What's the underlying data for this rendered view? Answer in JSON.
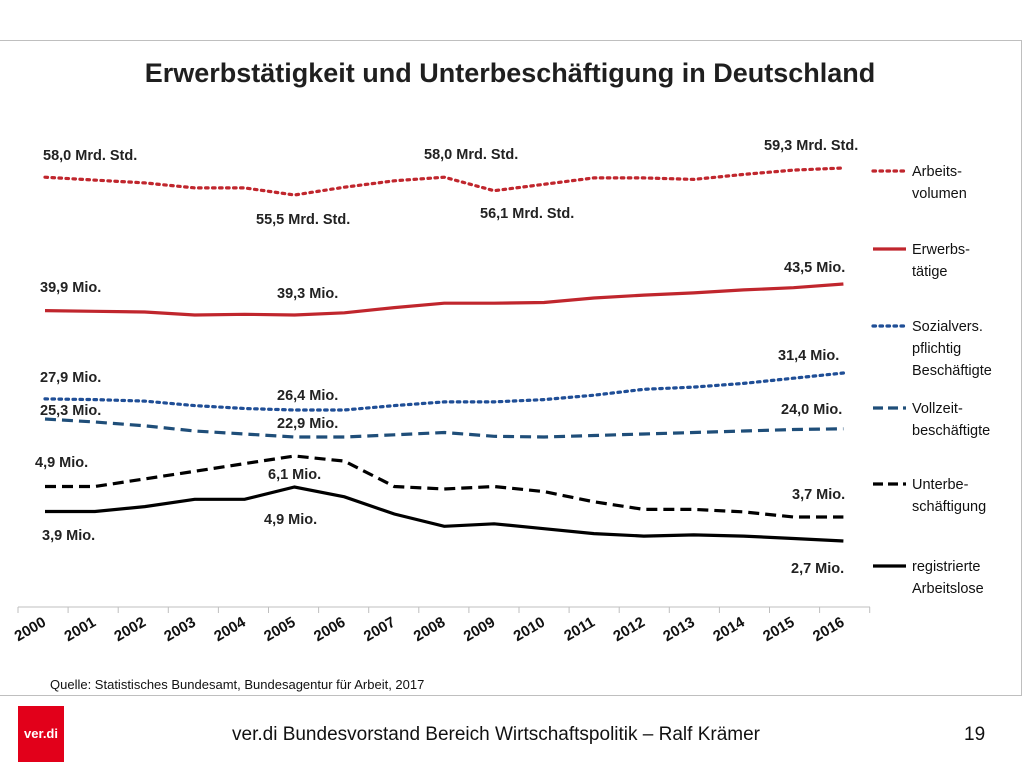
{
  "chart_data": {
    "type": "line",
    "title": "Erwerbstätigkeit und Unterbeschäftigung in Deutschland",
    "categories": [
      "2000",
      "2001",
      "2002",
      "2003",
      "2004",
      "2005",
      "2006",
      "2007",
      "2008",
      "2009",
      "2010",
      "2011",
      "2012",
      "2013",
      "2014",
      "2015",
      "2016"
    ],
    "series": [
      {
        "name": "Arbeits-volumen",
        "legend_lines": [
          "Arbeits-",
          "volumen"
        ],
        "unit": "Mrd. Std.",
        "color": "#c0262d",
        "style": "dotted",
        "values": [
          58.0,
          57.6,
          57.2,
          56.5,
          56.5,
          55.5,
          56.6,
          57.5,
          58.0,
          56.1,
          57.0,
          57.9,
          57.9,
          57.7,
          58.4,
          59.0,
          59.3
        ]
      },
      {
        "name": "Erwerbs-tätige",
        "legend_lines": [
          "Erwerbs-",
          "tätige"
        ],
        "unit": "Mio.",
        "color": "#c0262d",
        "style": "solid",
        "values": [
          39.9,
          39.8,
          39.7,
          39.3,
          39.4,
          39.3,
          39.6,
          40.3,
          40.9,
          40.9,
          41.0,
          41.6,
          42.0,
          42.3,
          42.7,
          43.0,
          43.5
        ]
      },
      {
        "name": "Sozialvers. pflichtig Beschäftigte",
        "legend_lines": [
          "Sozialvers.",
          "pflichtig",
          "Beschäftigte"
        ],
        "unit": "Mio.",
        "color": "#1f4e96",
        "style": "dotted",
        "values": [
          27.9,
          27.8,
          27.6,
          27.0,
          26.6,
          26.4,
          26.4,
          27.0,
          27.5,
          27.5,
          27.8,
          28.4,
          29.2,
          29.5,
          30.0,
          30.7,
          31.4
        ]
      },
      {
        "name": "Vollzeit-beschäftigte",
        "legend_lines": [
          "Vollzeit-",
          "beschäftigte"
        ],
        "unit": "Mio.",
        "color": "#1f4e79",
        "style": "dashed",
        "values": [
          25.3,
          24.9,
          24.4,
          23.7,
          23.3,
          22.9,
          22.9,
          23.2,
          23.5,
          23.0,
          22.9,
          23.1,
          23.3,
          23.5,
          23.7,
          23.9,
          24.0
        ]
      },
      {
        "name": "Unterbe-schäftigung",
        "legend_lines": [
          "Unterbe-",
          "schäftigung"
        ],
        "unit": "Mio.",
        "color": "#000000",
        "style": "dashed",
        "values": [
          4.9,
          4.9,
          5.2,
          5.5,
          5.8,
          6.1,
          5.9,
          4.9,
          4.8,
          4.9,
          4.7,
          4.3,
          4.0,
          4.0,
          3.9,
          3.7,
          3.7
        ]
      },
      {
        "name": "registrierte Arbeitslose",
        "legend_lines": [
          "registrierte",
          "Arbeitslose"
        ],
        "unit": "Mio.",
        "color": "#000000",
        "style": "solid",
        "values": [
          3.9,
          3.9,
          4.1,
          4.4,
          4.4,
          4.9,
          4.5,
          3.8,
          3.3,
          3.4,
          3.2,
          3.0,
          2.9,
          2.95,
          2.9,
          2.8,
          2.7
        ]
      }
    ],
    "annotations": [
      "58,0 Mrd. Std.",
      "55,5 Mrd. Std.",
      "58,0 Mrd. Std.",
      "56,1 Mrd. Std.",
      "59,3 Mrd. Std.",
      "39,9 Mio.",
      "39,3 Mio.",
      "43,5 Mio.",
      "27,9 Mio.",
      "26,4 Mio.",
      "31,4 Mio.",
      "25,3 Mio.",
      "22,9 Mio.",
      "24,0 Mio.",
      "4,9 Mio.",
      "6,1 Mio.",
      "3,7 Mio.",
      "3,9 Mio.",
      "4,9 Mio.",
      "2,7 Mio."
    ],
    "source": "Quelle: Statistisches Bundesamt, Bundesagentur für Arbeit, 2017",
    "legend_position": "right",
    "grid": false
  },
  "footer": {
    "text": "ver.di Bundesvorstand Bereich Wirtschaftspolitik – Ralf Krämer",
    "page": "19",
    "logo": "ver.di",
    "brand_color": "#e2001a"
  }
}
